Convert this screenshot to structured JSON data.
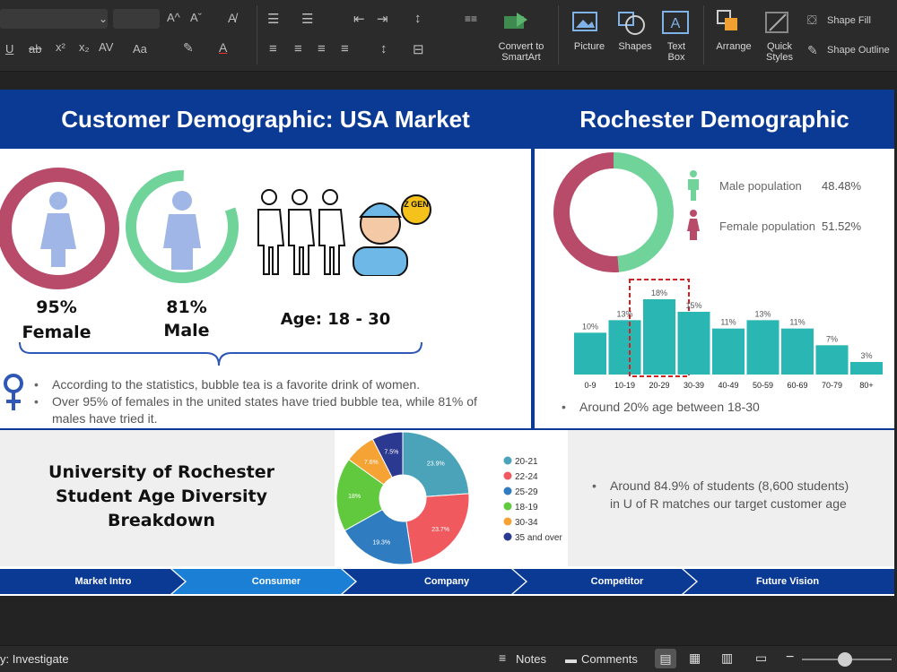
{
  "ribbon": {
    "convert_smartart": "Convert to SmartArt",
    "picture": "Picture",
    "shapes": "Shapes",
    "text_box": "Text Box",
    "arrange": "Arrange",
    "quick_styles": "Quick Styles",
    "shape_fill": "Shape Fill",
    "shape_outline": "Shape Outline"
  },
  "slide": {
    "usa_title": "Customer Demographic: USA Market",
    "roch_title": "Rochester Demographic",
    "female_pct": "95%",
    "female_label": "Female",
    "male_pct": "81%",
    "male_label": "Male",
    "age_label": "Age: 18 - 30",
    "zgen": "Z GEN",
    "bullets": [
      "According to the statistics, bubble tea is a favorite drink of women.",
      "Over 95% of females in the united states have tried bubble tea, while 81% of males have tried it."
    ],
    "roch_legend": [
      {
        "label": "Male population",
        "value": "48.48%"
      },
      {
        "label": "Female population",
        "value": "51.52%"
      }
    ],
    "roch_note": "Around 20% age between 18-30",
    "uofr_title": "University of Rochester Student Age Diversity Breakdown",
    "uofr_note": "Around 84.9% of students (8,600 students) in U of R matches our target customer age"
  },
  "chart_data": [
    {
      "type": "pie",
      "title": "",
      "categories": [
        "Male population",
        "Female population"
      ],
      "values": [
        48.48,
        51.52
      ],
      "colors": [
        "#6fd39a",
        "#b84a6a"
      ]
    },
    {
      "type": "bar",
      "title": "",
      "categories": [
        "0-9",
        "10-19",
        "20-29",
        "30-39",
        "40-49",
        "50-59",
        "60-69",
        "70-79",
        "80+"
      ],
      "values": [
        10,
        13,
        18,
        15,
        11,
        13,
        11,
        7,
        3
      ],
      "value_labels": [
        "10%",
        "13%",
        "18%",
        "15%",
        "11%",
        "13%",
        "11%",
        "7%",
        "3%"
      ],
      "ylim": [
        0,
        18
      ],
      "color": "#2ab7b3",
      "highlight": "20-29"
    },
    {
      "type": "pie",
      "title": "",
      "categories": [
        "20-21",
        "22-24",
        "25-29",
        "18-19",
        "30-34",
        "35 and over"
      ],
      "values": [
        23.9,
        23.7,
        19.3,
        18,
        7.6,
        7.5
      ],
      "value_labels": [
        "23.9%",
        "23.7%",
        "19.3%",
        "18%",
        "7.6%",
        "7.5%"
      ],
      "colors": [
        "#4aa3b8",
        "#f05a5e",
        "#2f7cc0",
        "#61c93d",
        "#f5a335",
        "#2c3990"
      ],
      "legend": "right"
    }
  ],
  "nav": [
    "Market Intro",
    "Consumer",
    "Company",
    "Competitor",
    "Future Vision"
  ],
  "status": {
    "left": "y: Investigate",
    "notes": "Notes",
    "comments": "Comments"
  }
}
